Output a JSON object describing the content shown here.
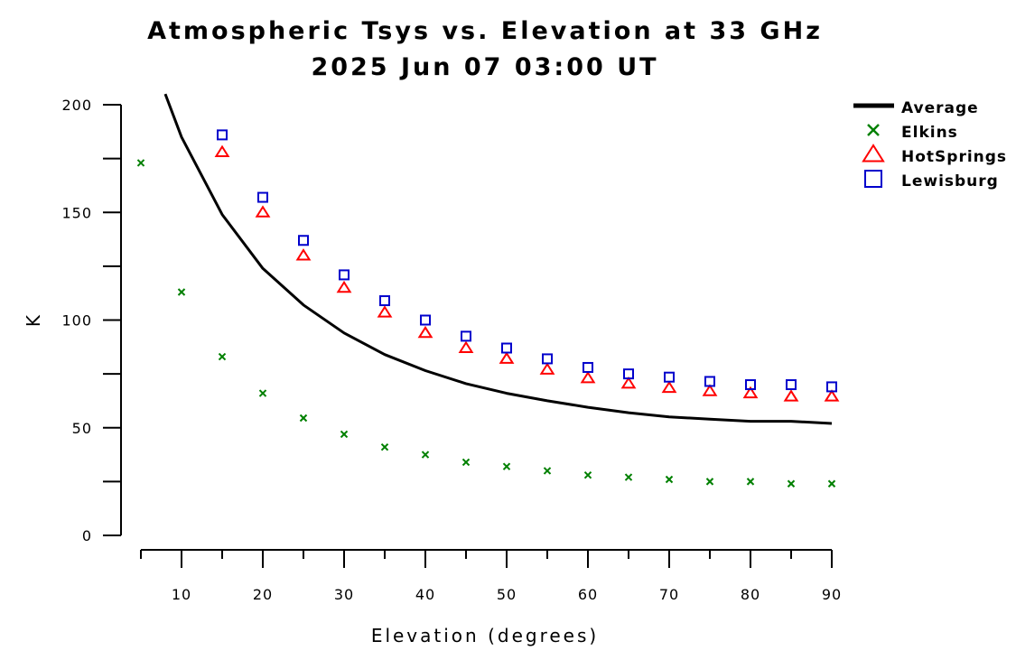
{
  "chart_data": {
    "type": "scatter",
    "title": "Atmospheric Tsys vs. Elevation at 33 GHz",
    "subtitle": "2025 Jun 07 03:00 UT",
    "xlabel": "Elevation (degrees)",
    "ylabel": "K",
    "xlim": [
      5,
      90
    ],
    "ylim": [
      0,
      200
    ],
    "x_ticks": [
      10,
      20,
      30,
      40,
      50,
      60,
      70,
      80,
      90
    ],
    "x_minor_ticks": [
      5,
      15,
      25,
      35,
      45,
      55,
      65,
      75,
      85
    ],
    "y_ticks": [
      0,
      50,
      100,
      150,
      200
    ],
    "y_minor_ticks": [
      25,
      75,
      125,
      175
    ],
    "grid": false,
    "legend_position": "top-right",
    "series": [
      {
        "name": "Average",
        "style": "line",
        "color": "#000000",
        "x": [
          8,
          10,
          15,
          20,
          25,
          30,
          35,
          40,
          45,
          50,
          55,
          60,
          65,
          70,
          75,
          80,
          85,
          90
        ],
        "y": [
          205,
          185,
          149,
          124,
          107,
          94,
          84,
          76.5,
          70.5,
          66,
          62.5,
          59.5,
          57,
          55,
          54,
          53,
          53,
          52
        ]
      },
      {
        "name": "Elkins",
        "style": "x",
        "color": "#008000",
        "x": [
          5,
          10,
          15,
          20,
          25,
          30,
          35,
          40,
          45,
          50,
          55,
          60,
          65,
          70,
          75,
          80,
          85,
          90
        ],
        "y": [
          173,
          113,
          83,
          66,
          54.5,
          47,
          41,
          37.5,
          34,
          32,
          30,
          28,
          27,
          26,
          25,
          25,
          24,
          24
        ]
      },
      {
        "name": "HotSprings",
        "style": "triangle",
        "color": "#ff0000",
        "x": [
          15,
          20,
          25,
          30,
          35,
          40,
          45,
          50,
          55,
          60,
          65,
          70,
          75,
          80,
          85,
          90
        ],
        "y": [
          178,
          150,
          130,
          115,
          103.5,
          94,
          87,
          82,
          77,
          73,
          70.5,
          68.5,
          67,
          66,
          64.5,
          64.5
        ]
      },
      {
        "name": "Lewisburg",
        "style": "square",
        "color": "#0000cc",
        "x": [
          15,
          20,
          25,
          30,
          35,
          40,
          45,
          50,
          55,
          60,
          65,
          70,
          75,
          80,
          85,
          90
        ],
        "y": [
          186,
          157,
          137,
          121,
          109,
          100,
          92.5,
          87,
          82,
          78,
          75,
          73.5,
          71.5,
          70,
          70,
          69
        ]
      }
    ]
  }
}
